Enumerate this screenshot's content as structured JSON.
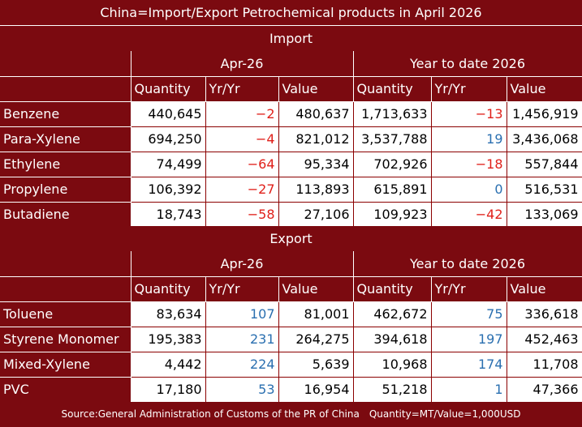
{
  "title": "China=Import/Export Petrochemical products in April 2026",
  "import": {
    "section_label": "Import",
    "period_label": "Apr-26",
    "ytd_label": "Year to date 2026",
    "columns": [
      "Quantity",
      "Yr/Yr",
      "Value",
      "Quantity",
      "Yr/Yr",
      "Value"
    ],
    "rows": [
      {
        "name": "Benzene",
        "cells": [
          "440,645",
          "−2",
          "480,637",
          "1,713,633",
          "−13",
          "1,456,919"
        ],
        "yoy_colors": [
          "neg",
          "neg"
        ]
      },
      {
        "name": "Para-Xylene",
        "cells": [
          "694,250",
          "−4",
          "821,012",
          "3,537,788",
          "19",
          "3,436,068"
        ],
        "yoy_colors": [
          "neg",
          "pos"
        ]
      },
      {
        "name": "Ethylene",
        "cells": [
          "74,499",
          "−64",
          "95,334",
          "702,926",
          "−18",
          "557,844"
        ],
        "yoy_colors": [
          "neg",
          "neg"
        ]
      },
      {
        "name": "Propylene",
        "cells": [
          "106,392",
          "−27",
          "113,893",
          "615,891",
          "0",
          "516,531"
        ],
        "yoy_colors": [
          "neg",
          "pos"
        ]
      },
      {
        "name": "Butadiene",
        "cells": [
          "18,743",
          "−58",
          "27,106",
          "109,923",
          "−42",
          "133,069"
        ],
        "yoy_colors": [
          "neg",
          "neg"
        ]
      }
    ]
  },
  "export": {
    "section_label": "Export",
    "period_label": "Apr-26",
    "ytd_label": "Year to date 2026",
    "columns": [
      "Quantity",
      "Yr/Yr",
      "Value",
      "Quantity",
      "Yr/Yr",
      "Value"
    ],
    "rows": [
      {
        "name": "Toluene",
        "cells": [
          "83,634",
          "107",
          "81,001",
          "462,672",
          "75",
          "336,618"
        ],
        "yoy_colors": [
          "pos",
          "pos"
        ]
      },
      {
        "name": "Styrene Monomer",
        "cells": [
          "195,383",
          "231",
          "264,275",
          "394,618",
          "197",
          "452,463"
        ],
        "yoy_colors": [
          "pos",
          "pos"
        ]
      },
      {
        "name": "Mixed-Xylene",
        "cells": [
          "4,442",
          "224",
          "5,639",
          "10,968",
          "174",
          "11,708"
        ],
        "yoy_colors": [
          "pos",
          "pos"
        ]
      },
      {
        "name": "PVC",
        "cells": [
          "17,180",
          "53",
          "16,954",
          "51,218",
          "1",
          "47,366"
        ],
        "yoy_colors": [
          "pos",
          "pos"
        ]
      }
    ]
  },
  "footer": "Source:General Administration of Customs of the PR of China　Quantity=MT/Value=1,000USD",
  "colors": {
    "header_bg": "#7b0a10",
    "negative": "#e0201a",
    "positive": "#2a6fb0"
  }
}
